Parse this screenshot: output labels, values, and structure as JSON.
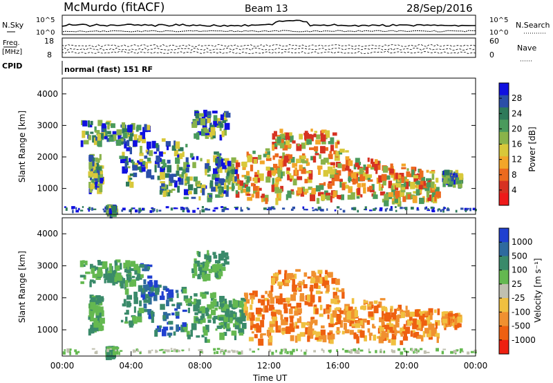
{
  "header": {
    "station": "McMurdo (fitACF)",
    "beam": "Beam 13",
    "date": "28/Sep/2016"
  },
  "top_panel": {
    "left_label": "N.Sky",
    "right_label": "N.Search",
    "left_ticks": [
      "10^5",
      "10^0"
    ],
    "right_ticks": [
      "10^5",
      "10^0"
    ],
    "freq_label_1": "Freq.",
    "freq_label_2": "[MHz]",
    "freq_ticks": [
      "18",
      "8"
    ],
    "nave_label": "Nave",
    "nave_ticks": [
      "60",
      "0"
    ],
    "cpid_label": "CPID",
    "cpid_text": "normal (fast) 151 RF"
  },
  "chart_data": [
    {
      "type": "heatmap",
      "quantity": "Power",
      "colorbar_label": "Power [dB]",
      "colorbar_ticks": [
        "28",
        "24",
        "20",
        "16",
        "12",
        "8",
        "4"
      ],
      "ylabel": "Slant Range [km]",
      "ylim": [
        180,
        4500
      ],
      "yticks": [
        1000,
        2000,
        3000,
        4000
      ],
      "colors": [
        "#1010e0",
        "#2b4fa8",
        "#2e7a5a",
        "#4a9a5c",
        "#8ab34a",
        "#d8c83a",
        "#f2a62a",
        "#ec6a1e",
        "#d63222",
        "#ee1a1a"
      ]
    },
    {
      "type": "heatmap",
      "quantity": "Velocity",
      "colorbar_label": "Velocity [m s⁻¹]",
      "colorbar_ticks": [
        "1000",
        "500",
        "100",
        "25",
        "-25",
        "-100",
        "-500",
        "-1000"
      ],
      "ylabel": "Slant Range [km]",
      "ylim": [
        180,
        4500
      ],
      "yticks": [
        1000,
        2000,
        3000,
        4000
      ],
      "colors": [
        "#2040d0",
        "#2e6a9e",
        "#3a8a6a",
        "#64b850",
        "#c0c0b0",
        "#f0c040",
        "#f09030",
        "#ee6010",
        "#ee2010"
      ]
    }
  ],
  "xaxis": {
    "label": "Time UT",
    "ticks": [
      "00:00",
      "04:00",
      "08:00",
      "12:00",
      "16:00",
      "20:00",
      "00:00"
    ],
    "range_hours": [
      0,
      24
    ]
  }
}
